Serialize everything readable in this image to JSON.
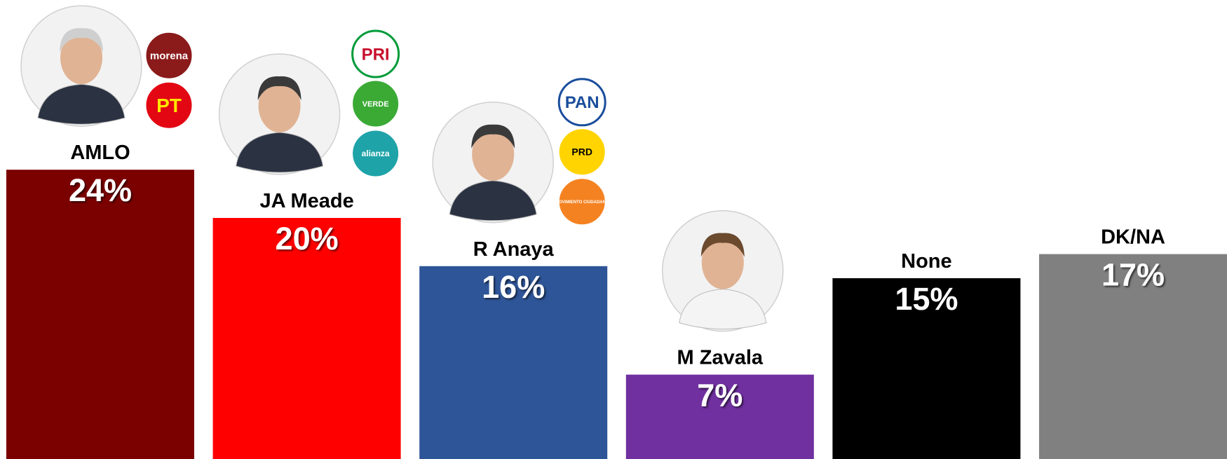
{
  "chart_data": {
    "type": "bar",
    "categories": [
      "AMLO",
      "JA Meade",
      "R Anaya",
      "M Zavala",
      "None",
      "DK/NA"
    ],
    "values": [
      24,
      20,
      16,
      7,
      15,
      17
    ],
    "value_labels": [
      "24%",
      "20%",
      "16%",
      "7%",
      "15%",
      "17%"
    ],
    "colors": [
      "#7b0000",
      "#ff0000",
      "#2e5597",
      "#7030a0",
      "#000000",
      "#808080"
    ],
    "party_logos": [
      [
        "morena",
        "PT"
      ],
      [
        "PRI",
        "VERDE",
        "alianza"
      ],
      [
        "PAN",
        "PRD",
        "MOVIMIENTO CIUDADANO"
      ],
      [],
      [],
      []
    ]
  }
}
